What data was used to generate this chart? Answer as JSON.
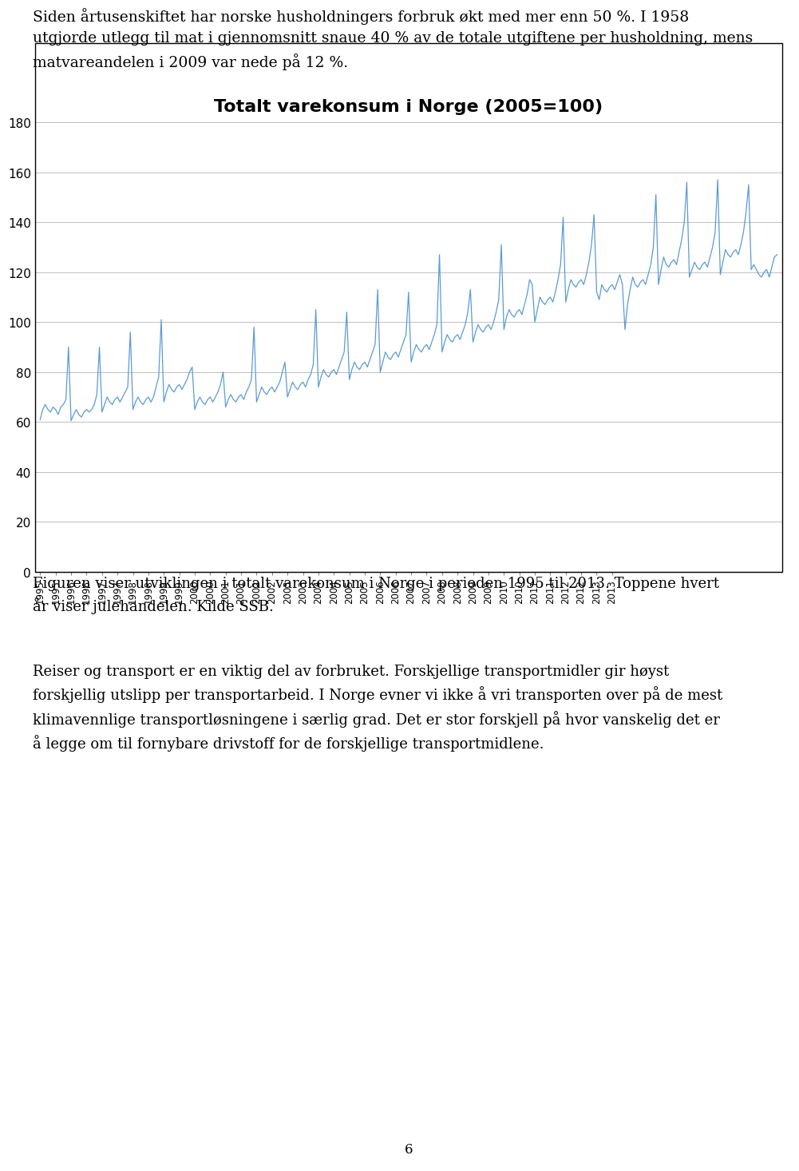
{
  "title": "Totalt varekonsum i Norge (2005=100)",
  "line_color": "#5B9BD5",
  "ylim": [
    0,
    180
  ],
  "yticks": [
    0,
    20,
    40,
    60,
    80,
    100,
    120,
    140,
    160,
    180
  ],
  "monthly_values": [
    61.0,
    65.0,
    67.0,
    65.0,
    64.0,
    66.0,
    65.0,
    63.0,
    66.0,
    67.0,
    69.0,
    90.0,
    60.5,
    63.0,
    65.0,
    63.0,
    62.0,
    64.0,
    65.0,
    64.0,
    65.0,
    67.0,
    71.0,
    90.0,
    64.0,
    67.0,
    70.0,
    68.0,
    67.0,
    69.0,
    70.0,
    68.0,
    70.0,
    72.0,
    74.0,
    96.0,
    65.0,
    68.0,
    70.0,
    68.0,
    67.0,
    69.0,
    70.0,
    68.0,
    70.0,
    74.0,
    78.0,
    101.0,
    68.0,
    72.0,
    75.0,
    73.0,
    72.0,
    74.0,
    75.0,
    73.0,
    75.0,
    77.0,
    80.0,
    82.0,
    65.0,
    68.0,
    70.0,
    68.0,
    67.0,
    69.0,
    70.0,
    68.0,
    70.0,
    72.0,
    75.0,
    80.0,
    66.0,
    69.0,
    71.0,
    69.0,
    68.0,
    70.0,
    71.0,
    69.0,
    72.0,
    74.0,
    77.0,
    98.0,
    68.0,
    71.0,
    74.0,
    72.0,
    71.0,
    73.0,
    74.0,
    72.0,
    74.0,
    76.0,
    80.0,
    84.0,
    70.0,
    73.0,
    76.0,
    74.0,
    73.0,
    75.0,
    76.0,
    74.0,
    77.0,
    79.0,
    83.0,
    105.0,
    74.0,
    78.0,
    81.0,
    79.0,
    78.0,
    80.0,
    81.0,
    79.0,
    82.0,
    85.0,
    88.0,
    104.0,
    77.0,
    81.0,
    84.0,
    82.0,
    81.0,
    83.0,
    84.0,
    82.0,
    85.0,
    88.0,
    91.0,
    113.0,
    80.0,
    84.0,
    88.0,
    86.0,
    85.0,
    87.0,
    88.0,
    86.0,
    89.0,
    92.0,
    95.0,
    112.0,
    84.0,
    88.0,
    91.0,
    89.0,
    88.0,
    90.0,
    91.0,
    89.0,
    92.0,
    95.0,
    99.0,
    127.0,
    88.0,
    92.0,
    95.0,
    93.0,
    92.0,
    94.0,
    95.0,
    93.0,
    96.0,
    99.0,
    104.0,
    113.0,
    92.0,
    96.0,
    99.0,
    97.0,
    96.0,
    98.0,
    99.0,
    97.0,
    100.0,
    104.0,
    109.0,
    131.0,
    97.0,
    102.0,
    105.0,
    103.0,
    102.0,
    104.0,
    105.0,
    103.0,
    107.0,
    111.0,
    117.0,
    115.0,
    100.0,
    105.0,
    110.0,
    108.0,
    107.0,
    109.0,
    110.0,
    108.0,
    112.0,
    117.0,
    123.0,
    142.0,
    108.0,
    113.0,
    117.0,
    115.0,
    114.0,
    116.0,
    117.0,
    115.0,
    119.0,
    124.0,
    131.0,
    143.0,
    112.0,
    109.0,
    115.0,
    113.0,
    112.0,
    114.0,
    115.0,
    113.0,
    116.0,
    119.0,
    115.0,
    97.0,
    107.0,
    113.0,
    118.0,
    115.0,
    114.0,
    116.0,
    117.0,
    115.0,
    119.0,
    123.0,
    130.0,
    151.0,
    115.0,
    121.0,
    126.0,
    123.0,
    122.0,
    124.0,
    125.0,
    123.0,
    128.0,
    133.0,
    140.0,
    156.0,
    118.0,
    121.0,
    124.0,
    122.0,
    121.0,
    123.0,
    124.0,
    122.0,
    126.0,
    130.0,
    136.0,
    157.0,
    119.0,
    124.0,
    129.0,
    127.0,
    126.0,
    128.0,
    129.0,
    127.0,
    131.0,
    136.0,
    144.0,
    155.0,
    121.0,
    123.0,
    121.0,
    119.0,
    118.0,
    120.0,
    121.0,
    118.0,
    122.0,
    126.0,
    127.0
  ],
  "text_above_line1": "Siden årtusenskiftet har norske husholdningers forbruk økt med mer enn 50 %. I 1958",
  "text_above_line2": "utgjorde utlegg til mat i gjennomsnitt snaue 40 % av de totale utgiftene per husholdning, mens",
  "text_above_line3": "matvareandelen i 2009 var nede på 12 %.",
  "caption_line1": "Figuren viser utviklingen i totalt varekonsum i Norge i perioden 1995 til 2013. Toppene hvert",
  "caption_line2": "år viser julehandelen. Kilde SSB.",
  "para2_line1": "Reiser og transport er en viktig del av forbruket. Forskjellige transportmidler gir høyst",
  "para2_line2": "forskjellig utslipp per transportarbeid. I Norge evner vi ikke å vri transporten over på de mest",
  "para2_line3": "klimavennlige transportløsningene i særlig grad. Det er stor forskjell på hvor vanskelig det er",
  "para2_line4": "å legge om til fornybare drivstoff for de forskjellige transportmidlene.",
  "page_number": "6"
}
